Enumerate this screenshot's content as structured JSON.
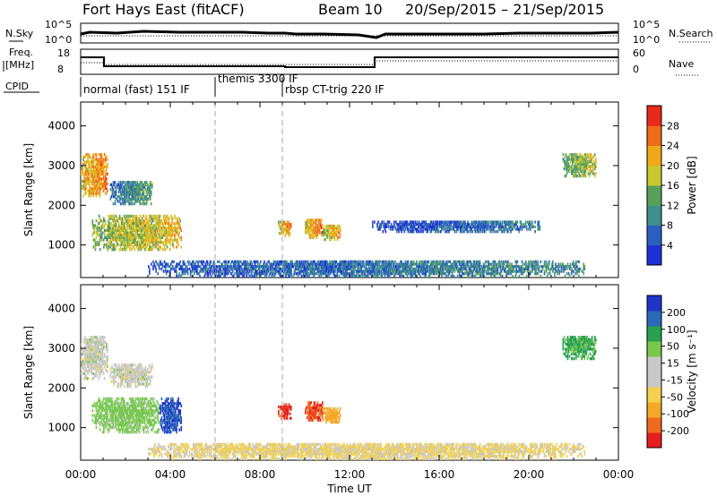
{
  "header": {
    "station": "Fort Hays East (fitACF)",
    "beam": "Beam 10",
    "date_range": "20/Sep/2015 – 21/Sep/2015"
  },
  "top_panels": {
    "nsky_label": "N.Sky",
    "nsearch_label": "N.Search",
    "noise_ticks": [
      "10^5",
      "10^0"
    ],
    "freq_label": "Freq.",
    "freq_unit": "[MHz]",
    "freq_ticks": [
      "18",
      "8"
    ],
    "nave_label": "Nave",
    "nave_ticks": [
      "60",
      "0"
    ],
    "cpid_label": "CPID",
    "cpid_segments": [
      {
        "label": "normal (fast) 151 IF",
        "start_hour": 0,
        "end_hour": 6
      },
      {
        "label": "themis 3300 IF",
        "start_hour": 6,
        "end_hour": 9
      },
      {
        "label": "rbsp CT-trig 220 IF",
        "start_hour": 9,
        "end_hour": 24
      }
    ]
  },
  "colors": {
    "power_scale": [
      "#1f2fd8",
      "#2a5fc0",
      "#3f8f8f",
      "#57a05a",
      "#c9c830",
      "#f0a818",
      "#f06a18",
      "#e82a1a"
    ],
    "velocity_scale": [
      "#e61e1e",
      "#f06a1e",
      "#f5a828",
      "#f2d050",
      "#c8c8c8",
      "#c8c8c8",
      "#78c850",
      "#28a050",
      "#2a6ab8",
      "#2035c8"
    ]
  },
  "chart_data": [
    {
      "type": "heatmap",
      "title": "Power",
      "ylabel": "Slant Range [km]",
      "xlabel": "",
      "ylim": [
        180,
        4600
      ],
      "xlim_hours": [
        0,
        24
      ],
      "y_ticks": [
        1000,
        2000,
        3000,
        4000
      ],
      "x_ticks": [],
      "colorbar": {
        "label": "Power [dB]",
        "range": [
          0,
          32
        ],
        "ticks": [
          "4",
          "8",
          "12",
          "16",
          "20",
          "24",
          "28"
        ]
      },
      "echo_regions": [
        {
          "t_start": 0.5,
          "t_end": 4.5,
          "r_min": 850,
          "r_max": 1750,
          "power_db": 18
        },
        {
          "t_start": 0.0,
          "t_end": 1.2,
          "r_min": 2200,
          "r_max": 3300,
          "power_db": 22
        },
        {
          "t_start": 1.3,
          "t_end": 3.2,
          "r_min": 2000,
          "r_max": 2600,
          "power_db": 10
        },
        {
          "t_start": 8.8,
          "t_end": 9.4,
          "r_min": 1200,
          "r_max": 1600,
          "power_db": 22
        },
        {
          "t_start": 10.0,
          "t_end": 10.8,
          "r_min": 1150,
          "r_max": 1650,
          "power_db": 22
        },
        {
          "t_start": 10.8,
          "t_end": 11.6,
          "r_min": 1100,
          "r_max": 1500,
          "power_db": 20
        },
        {
          "t_start": 3.0,
          "t_end": 22.5,
          "r_min": 180,
          "r_max": 600,
          "power_db": 8
        },
        {
          "t_start": 13.0,
          "t_end": 20.5,
          "r_min": 1300,
          "r_max": 1600,
          "power_db": 6
        },
        {
          "t_start": 21.5,
          "t_end": 23.0,
          "r_min": 2700,
          "r_max": 3300,
          "power_db": 16
        }
      ]
    },
    {
      "type": "heatmap",
      "title": "Velocity",
      "ylabel": "Slant Range [km]",
      "xlabel": "Time UT",
      "ylim": [
        180,
        4600
      ],
      "xlim_hours": [
        0,
        24
      ],
      "y_ticks": [
        1000,
        2000,
        3000,
        4000
      ],
      "x_ticks": [
        "00:00",
        "04:00",
        "08:00",
        "12:00",
        "16:00",
        "20:00",
        "00:00"
      ],
      "colorbar": {
        "label": "Velocity [m s⁻¹]",
        "ticks": [
          "-200",
          "-100",
          "-50",
          "-15",
          "15",
          "50",
          "100",
          "200"
        ]
      },
      "echo_regions": [
        {
          "t_start": 0.5,
          "t_end": 3.5,
          "r_min": 850,
          "r_max": 1750,
          "velocity": 30
        },
        {
          "t_start": 3.5,
          "t_end": 4.5,
          "r_min": 850,
          "r_max": 1750,
          "velocity": 200
        },
        {
          "t_start": 0.0,
          "t_end": 1.2,
          "r_min": 2200,
          "r_max": 3300,
          "velocity": 0
        },
        {
          "t_start": 1.3,
          "t_end": 3.2,
          "r_min": 2000,
          "r_max": 2600,
          "velocity": 0
        },
        {
          "t_start": 8.8,
          "t_end": 9.4,
          "r_min": 1200,
          "r_max": 1600,
          "velocity": -200
        },
        {
          "t_start": 10.0,
          "t_end": 10.8,
          "r_min": 1150,
          "r_max": 1650,
          "velocity": -200
        },
        {
          "t_start": 10.8,
          "t_end": 11.6,
          "r_min": 1100,
          "r_max": 1500,
          "velocity": -80
        },
        {
          "t_start": 3.0,
          "t_end": 22.5,
          "r_min": 180,
          "r_max": 600,
          "velocity": -20
        },
        {
          "t_start": 21.5,
          "t_end": 23.0,
          "r_min": 2700,
          "r_max": 3300,
          "velocity": 60
        }
      ]
    }
  ]
}
